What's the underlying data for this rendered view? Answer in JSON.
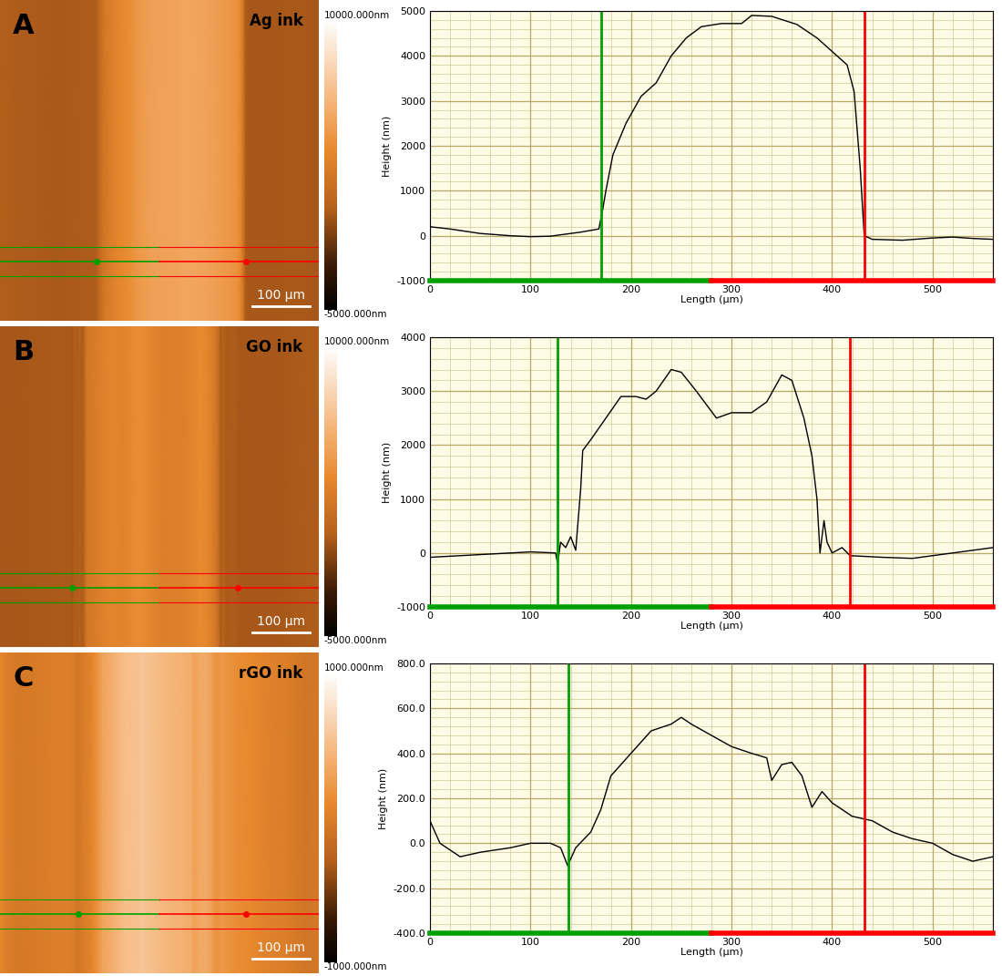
{
  "chart_data": [
    {
      "type": "line",
      "panel": "A",
      "image_label": "Ag ink",
      "colorbar": {
        "range": [
          -5000,
          10000
        ],
        "ticks": [
          {
            "value": 10000,
            "label": "10000.000nm"
          },
          {
            "value": -5000,
            "label": "-5000.000nm"
          }
        ]
      },
      "scale_bar": {
        "length": 100,
        "label": "100 µm"
      },
      "xlabel": "Length (µm)",
      "ylabel": "Height (nm)",
      "x": [
        0,
        20,
        50,
        80,
        100,
        120,
        150,
        168,
        172,
        175,
        182,
        195,
        210,
        225,
        240,
        255,
        270,
        290,
        310,
        320,
        340,
        365,
        385,
        400,
        415,
        422,
        428,
        432,
        440,
        470,
        500,
        520,
        540,
        560
      ],
      "values": [
        200,
        150,
        50,
        0,
        -20,
        -10,
        80,
        150,
        600,
        1000,
        1800,
        2500,
        3100,
        3400,
        4000,
        4400,
        4650,
        4720,
        4720,
        4900,
        4880,
        4700,
        4400,
        4100,
        3800,
        3200,
        1500,
        0,
        -80,
        -100,
        -50,
        -30,
        -60,
        -80
      ],
      "xlim": [
        0,
        560
      ],
      "ylim": [
        -1000,
        5000
      ],
      "xticks": [
        0,
        100,
        200,
        300,
        400,
        500
      ],
      "yticks": [
        -1000,
        0,
        1000,
        2000,
        3000,
        4000,
        5000
      ],
      "grid": true,
      "cursors": [
        {
          "x": 170,
          "color": "#00a000"
        },
        {
          "x": 432,
          "color": "#ff0000"
        }
      ]
    },
    {
      "type": "line",
      "panel": "B",
      "image_label": "GO ink",
      "colorbar": {
        "range": [
          -5000,
          10000
        ],
        "ticks": [
          {
            "value": 10000,
            "label": "10000.000nm"
          },
          {
            "value": -5000,
            "label": "-5000.000nm"
          }
        ]
      },
      "scale_bar": {
        "length": 100,
        "label": "100 µm"
      },
      "xlabel": "Length (µm)",
      "ylabel": "Height (nm)",
      "x": [
        0,
        50,
        100,
        125,
        127,
        130,
        135,
        140,
        145,
        150,
        152,
        160,
        175,
        190,
        205,
        215,
        225,
        240,
        250,
        265,
        285,
        300,
        320,
        335,
        350,
        360,
        372,
        380,
        385,
        388,
        392,
        395,
        400,
        410,
        418,
        450,
        480,
        520,
        560
      ],
      "values": [
        -80,
        -30,
        20,
        0,
        -200,
        200,
        100,
        300,
        50,
        1200,
        1900,
        2100,
        2500,
        2900,
        2900,
        2850,
        3000,
        3400,
        3350,
        3000,
        2500,
        2600,
        2600,
        2800,
        3300,
        3200,
        2500,
        1800,
        1000,
        0,
        600,
        200,
        0,
        100,
        -50,
        -80,
        -100,
        0,
        100
      ],
      "xlim": [
        0,
        560
      ],
      "ylim": [
        -1000,
        4000
      ],
      "xticks": [
        0,
        100,
        200,
        300,
        400,
        500
      ],
      "yticks": [
        -1000,
        0,
        1000,
        2000,
        3000,
        4000
      ],
      "grid": true,
      "cursors": [
        {
          "x": 127,
          "color": "#00a000"
        },
        {
          "x": 418,
          "color": "#ff0000"
        }
      ]
    },
    {
      "type": "line",
      "panel": "C",
      "image_label": "rGO ink",
      "colorbar": {
        "range": [
          -1000,
          1000
        ],
        "ticks": [
          {
            "value": 1000,
            "label": "1000.000nm"
          },
          {
            "value": -1000,
            "label": "-1000.000nm"
          }
        ]
      },
      "scale_bar": {
        "length": 100,
        "label": "100 µm"
      },
      "xlabel": "Length (µm)",
      "ylabel": "Height (nm)",
      "x": [
        0,
        10,
        30,
        50,
        80,
        100,
        120,
        130,
        137,
        145,
        160,
        170,
        180,
        190,
        200,
        210,
        220,
        240,
        250,
        260,
        280,
        300,
        320,
        335,
        340,
        350,
        360,
        370,
        380,
        390,
        400,
        420,
        440,
        460,
        480,
        500,
        520,
        540,
        560
      ],
      "values": [
        100,
        0,
        -60,
        -40,
        -20,
        0,
        0,
        -20,
        -100,
        -20,
        50,
        150,
        300,
        350,
        400,
        450,
        500,
        530,
        560,
        530,
        480,
        430,
        400,
        380,
        280,
        350,
        360,
        300,
        160,
        230,
        180,
        120,
        100,
        50,
        20,
        0,
        -50,
        -80,
        -60
      ],
      "xlim": [
        0,
        560
      ],
      "ylim": [
        -400,
        800
      ],
      "xticks": [
        0,
        100,
        200,
        300,
        400,
        500
      ],
      "yticks": [
        {
          "value": -400,
          "label": "-400.0"
        },
        {
          "value": -200,
          "label": "-200.0"
        },
        {
          "value": 0,
          "label": "0.0"
        },
        {
          "value": 200,
          "label": "200.0"
        },
        {
          "value": 400,
          "label": "400.0"
        },
        {
          "value": 600,
          "label": "600.0"
        },
        {
          "value": 800,
          "label": "800.0"
        }
      ],
      "grid": true,
      "cursors": [
        {
          "x": 138,
          "color": "#00a000"
        },
        {
          "x": 432,
          "color": "#ff0000"
        }
      ]
    }
  ]
}
